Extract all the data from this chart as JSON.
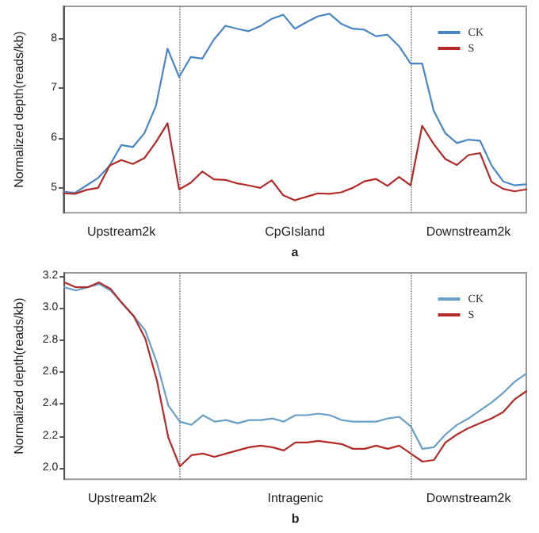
{
  "chart_data": [
    {
      "type": "line",
      "xlabel": "a",
      "ylabel": "Normalized depth(reads/kb)",
      "ylim": [
        4.5,
        8.65
      ],
      "categories": [
        null,
        null,
        null,
        null,
        null,
        "Upstream2k",
        null,
        null,
        null,
        null,
        null,
        null,
        null,
        null,
        null,
        null,
        null,
        null,
        null,
        null,
        "CpGIsland",
        null,
        null,
        null,
        null,
        null,
        null,
        null,
        null,
        null,
        null,
        null,
        null,
        null,
        null,
        "Downstream2k",
        null,
        null,
        null,
        null,
        null
      ],
      "yticks": [
        5,
        6,
        7,
        8
      ],
      "grid": "x",
      "legend": "top right",
      "marker": "none",
      "line_style": "solid",
      "series": [
        {
          "name": "CK",
          "color": "#4a86c5",
          "values": [
            4.92,
            4.9,
            5.05,
            5.2,
            5.45,
            5.86,
            5.82,
            6.1,
            6.65,
            7.8,
            7.23,
            7.63,
            7.6,
            7.98,
            8.26,
            8.2,
            8.15,
            8.25,
            8.4,
            8.48,
            8.2,
            8.33,
            8.45,
            8.5,
            8.3,
            8.2,
            8.18,
            8.05,
            8.08,
            7.85,
            7.5,
            7.5,
            6.55,
            6.1,
            5.9,
            5.97,
            5.95,
            5.45,
            5.13,
            5.05,
            5.07
          ]
        },
        {
          "name": "S",
          "color": "#b22a2a",
          "values": [
            4.89,
            4.88,
            4.96,
            5.0,
            5.45,
            5.56,
            5.48,
            5.6,
            5.92,
            6.3,
            4.97,
            5.1,
            5.33,
            5.17,
            5.16,
            5.09,
            5.05,
            5.0,
            5.15,
            4.85,
            4.75,
            4.82,
            4.89,
            4.88,
            4.91,
            5.0,
            5.13,
            5.18,
            5.04,
            5.22,
            5.05,
            6.25,
            5.88,
            5.58,
            5.46,
            5.66,
            5.7,
            5.12,
            4.98,
            4.93,
            4.97
          ]
        }
      ]
    },
    {
      "type": "line",
      "xlabel": "b",
      "ylabel": "Normalized depth(reads/kb)",
      "ylim": [
        1.93,
        3.22
      ],
      "categories": [
        null,
        null,
        null,
        null,
        null,
        "Upstream2k",
        null,
        null,
        null,
        null,
        null,
        null,
        null,
        null,
        null,
        null,
        null,
        null,
        null,
        null,
        "Intragenic",
        null,
        null,
        null,
        null,
        null,
        null,
        null,
        null,
        null,
        null,
        null,
        null,
        null,
        null,
        "Downstream2k",
        null,
        null,
        null,
        null,
        null
      ],
      "yticks": [
        {
          "value": 2.0,
          "label": "2.0"
        },
        2.2,
        2.4,
        2.6,
        2.8,
        {
          "value": 3.0,
          "label": "3.0"
        },
        3.2
      ],
      "grid": "x",
      "legend": "top right",
      "marker": "none",
      "line_style": "solid",
      "series": [
        {
          "name": "CK",
          "color": "#6a9fc8",
          "values": [
            3.13,
            3.11,
            3.13,
            3.15,
            3.11,
            3.03,
            2.95,
            2.86,
            2.66,
            2.39,
            2.29,
            2.27,
            2.33,
            2.29,
            2.3,
            2.28,
            2.3,
            2.3,
            2.31,
            2.29,
            2.33,
            2.33,
            2.34,
            2.33,
            2.3,
            2.29,
            2.29,
            2.29,
            2.31,
            2.32,
            2.26,
            2.12,
            2.13,
            2.21,
            2.27,
            2.31,
            2.36,
            2.41,
            2.47,
            2.54,
            2.59
          ]
        },
        {
          "name": "S",
          "color": "#b22a2a",
          "values": [
            3.16,
            3.13,
            3.13,
            3.16,
            3.12,
            3.03,
            2.95,
            2.81,
            2.55,
            2.19,
            2.01,
            2.08,
            2.09,
            2.07,
            2.09,
            2.11,
            2.13,
            2.14,
            2.13,
            2.11,
            2.16,
            2.16,
            2.17,
            2.16,
            2.15,
            2.12,
            2.12,
            2.14,
            2.12,
            2.14,
            2.09,
            2.04,
            2.05,
            2.16,
            2.21,
            2.25,
            2.28,
            2.31,
            2.35,
            2.43,
            2.48
          ]
        }
      ]
    }
  ]
}
